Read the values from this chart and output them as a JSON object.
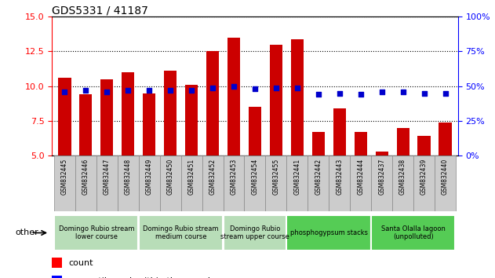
{
  "title": "GDS5331 / 41187",
  "samples": [
    "GSM832445",
    "GSM832446",
    "GSM832447",
    "GSM832448",
    "GSM832449",
    "GSM832450",
    "GSM832451",
    "GSM832452",
    "GSM832453",
    "GSM832454",
    "GSM832455",
    "GSM832441",
    "GSM832442",
    "GSM832443",
    "GSM832444",
    "GSM832437",
    "GSM832438",
    "GSM832439",
    "GSM832440"
  ],
  "count": [
    10.6,
    9.4,
    10.5,
    11.0,
    9.5,
    11.1,
    10.1,
    12.5,
    13.5,
    8.5,
    13.0,
    13.4,
    6.7,
    8.4,
    6.7,
    5.3,
    7.0,
    6.4,
    7.4
  ],
  "percentile": [
    46,
    47,
    46,
    47,
    47,
    47,
    47,
    49,
    50,
    48,
    49,
    49,
    44,
    45,
    44,
    46,
    46,
    45,
    45
  ],
  "ylim_left": [
    5,
    15
  ],
  "ylim_right": [
    0,
    100
  ],
  "yticks_left": [
    5,
    7.5,
    10,
    12.5,
    15
  ],
  "yticks_right": [
    0,
    25,
    50,
    75,
    100
  ],
  "groups": [
    {
      "label": "Domingo Rubio stream\nlower course",
      "start": 0,
      "end": 4,
      "color": "#b8ddb8"
    },
    {
      "label": "Domingo Rubio stream\nmedium course",
      "start": 4,
      "end": 8,
      "color": "#b8ddb8"
    },
    {
      "label": "Domingo Rubio\nstream upper course",
      "start": 8,
      "end": 11,
      "color": "#b8ddb8"
    },
    {
      "label": "phosphogypsum stacks",
      "start": 11,
      "end": 15,
      "color": "#55cc55"
    },
    {
      "label": "Santa Olalla lagoon\n(unpolluted)",
      "start": 15,
      "end": 19,
      "color": "#55cc55"
    }
  ],
  "bar_color": "#cc0000",
  "dot_color": "#0000cc",
  "bar_bottom": 5,
  "xtick_bg": "#cccccc",
  "xtick_border": "#888888"
}
